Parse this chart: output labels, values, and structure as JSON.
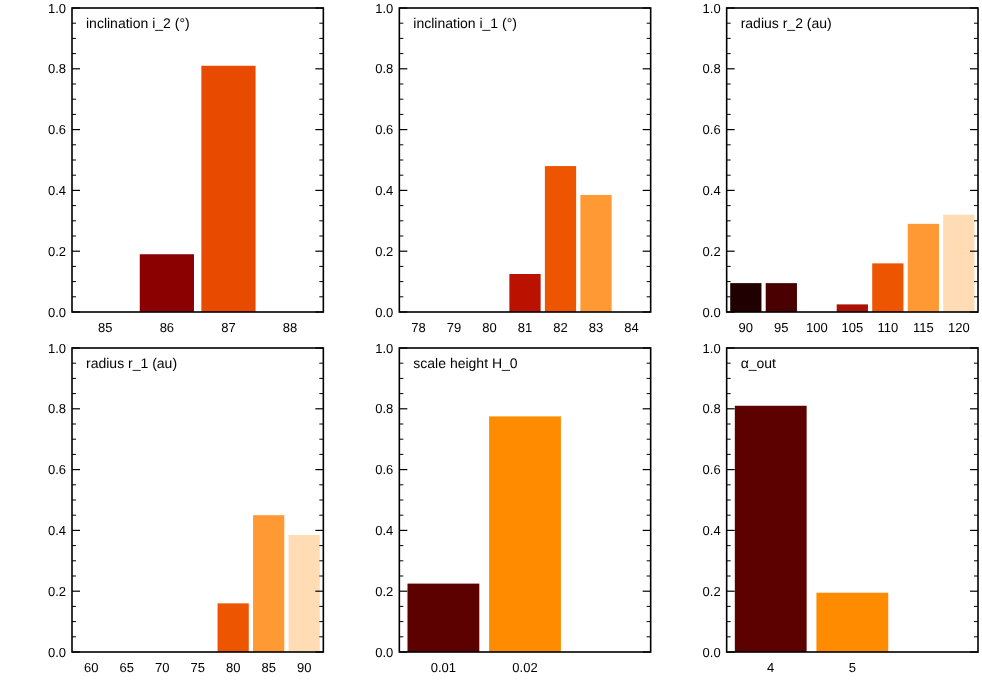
{
  "chart_data": [
    {
      "type": "bar",
      "title": "inclination i_2 (°)",
      "categories": [
        "85",
        "86",
        "87",
        "88"
      ],
      "values": [
        0,
        0.19,
        0.81,
        0
      ],
      "colors": [
        "#8b0000",
        "#8b0000",
        "#e84a00",
        "#e84a00"
      ],
      "ylim": [
        0,
        1
      ],
      "yticks": [
        {
          "value": 0,
          "label": "0.0"
        },
        {
          "value": 0.2,
          "label": "0.2"
        },
        {
          "value": 0.4,
          "label": "0.4"
        },
        {
          "value": 0.6,
          "label": "0.6"
        },
        {
          "value": 0.8,
          "label": "0.8"
        },
        {
          "value": 1,
          "label": "1.0"
        }
      ]
    },
    {
      "type": "bar",
      "title": "inclination i_1 (°)",
      "categories": [
        "78",
        "79",
        "80",
        "81",
        "82",
        "83",
        "84"
      ],
      "values": [
        0,
        0,
        0,
        0.125,
        0.48,
        0.385,
        0
      ],
      "colors": [
        "#bb1100",
        "#bb1100",
        "#bb1100",
        "#bb1100",
        "#ee5500",
        "#ff9933",
        "#ff9933"
      ],
      "ylim": [
        0,
        1
      ],
      "yticks": [
        {
          "value": 0,
          "label": "0.0"
        },
        {
          "value": 0.2,
          "label": "0.2"
        },
        {
          "value": 0.4,
          "label": "0.4"
        },
        {
          "value": 0.6,
          "label": "0.6"
        },
        {
          "value": 0.8,
          "label": "0.8"
        },
        {
          "value": 1,
          "label": "1.0"
        }
      ]
    },
    {
      "type": "bar",
      "title": "radius r_2 (au)",
      "categories": [
        "90",
        "95",
        "100",
        "105",
        "110",
        "115",
        "120"
      ],
      "values": [
        0.095,
        0.095,
        0,
        0.025,
        0.16,
        0.29,
        0.32
      ],
      "colors": [
        "#200000",
        "#4a0000",
        "#aa1100",
        "#aa1100",
        "#ee5500",
        "#ff9933",
        "#ffdcb4"
      ],
      "ylim": [
        0,
        1
      ],
      "yticks": [
        {
          "value": 0,
          "label": "0.0"
        },
        {
          "value": 0.2,
          "label": "0.2"
        },
        {
          "value": 0.4,
          "label": "0.4"
        },
        {
          "value": 0.6,
          "label": "0.6"
        },
        {
          "value": 0.8,
          "label": "0.8"
        },
        {
          "value": 1,
          "label": "1.0"
        }
      ]
    },
    {
      "type": "bar",
      "title": "radius r_1 (au)",
      "categories": [
        "60",
        "65",
        "70",
        "75",
        "80",
        "85",
        "90"
      ],
      "values": [
        0,
        0,
        0,
        0,
        0.16,
        0.45,
        0.385
      ],
      "colors": [
        "#ee5500",
        "#ee5500",
        "#ee5500",
        "#ee5500",
        "#ee5500",
        "#ff9933",
        "#ffdcb4"
      ],
      "ylim": [
        0,
        1
      ],
      "yticks": [
        {
          "value": 0,
          "label": "0.0"
        },
        {
          "value": 0.2,
          "label": "0.2"
        },
        {
          "value": 0.4,
          "label": "0.4"
        },
        {
          "value": 0.6,
          "label": "0.6"
        },
        {
          "value": 0.8,
          "label": "0.8"
        },
        {
          "value": 1,
          "label": "1.0"
        }
      ]
    },
    {
      "type": "bar",
      "title": "scale height H_0",
      "categories": [
        "0.01",
        "0.02",
        null
      ],
      "values": [
        0.225,
        0.775,
        null
      ],
      "colors": [
        "#5c0000",
        "#ff8c00",
        null
      ],
      "ylim": [
        0,
        1
      ],
      "yticks": [
        {
          "value": 0,
          "label": "0.0"
        },
        {
          "value": 0.2,
          "label": "0.2"
        },
        {
          "value": 0.4,
          "label": "0.4"
        },
        {
          "value": 0.6,
          "label": "0.6"
        },
        {
          "value": 0.8,
          "label": "0.8"
        },
        {
          "value": 1,
          "label": "1.0"
        }
      ]
    },
    {
      "type": "bar",
      "title": "α_out",
      "categories": [
        "4",
        "5",
        null
      ],
      "values": [
        0.81,
        0.195,
        null
      ],
      "colors": [
        "#5c0000",
        "#ff8c00",
        null
      ],
      "ylim": [
        0,
        1
      ],
      "yticks": [
        {
          "value": 0,
          "label": "0.0"
        },
        {
          "value": 0.2,
          "label": "0.2"
        },
        {
          "value": 0.4,
          "label": "0.4"
        },
        {
          "value": 0.6,
          "label": "0.6"
        },
        {
          "value": 0.8,
          "label": "0.8"
        },
        {
          "value": 1,
          "label": "1.0"
        }
      ]
    }
  ]
}
